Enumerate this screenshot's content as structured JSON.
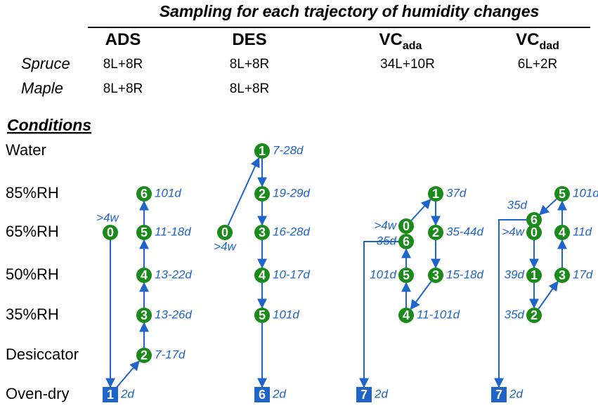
{
  "title": "Sampling for each trajectory of humidity changes",
  "columns": [
    {
      "main": "ADS"
    },
    {
      "main": "DES"
    },
    {
      "main": "VC",
      "sub": "ada"
    },
    {
      "main": "VC",
      "sub": "dad"
    }
  ],
  "rows": [
    {
      "name": "Spruce",
      "values": [
        "8L+8R",
        "8L+8R",
        "34L+10R",
        "6L+2R"
      ]
    },
    {
      "name": "Maple",
      "values": [
        "8L+8R",
        "8L+8R"
      ]
    }
  ],
  "conditions_title": "Conditions",
  "conditions": [
    "Water",
    "85%RH",
    "65%RH",
    "50%RH",
    "35%RH",
    "Desiccator",
    "Oven-dry"
  ],
  "trajectories": [
    {
      "nodes": [
        {
          "id": "0",
          "time": ">4w"
        },
        {
          "id": "1",
          "time": "2d"
        },
        {
          "id": "2",
          "time": "7-17d"
        },
        {
          "id": "3",
          "time": "13-26d"
        },
        {
          "id": "4",
          "time": "13-22d"
        },
        {
          "id": "5",
          "time": "11-18d"
        },
        {
          "id": "6",
          "time": "101d"
        }
      ]
    },
    {
      "nodes": [
        {
          "id": "0",
          "time": ">4w"
        },
        {
          "id": "1",
          "time": "7-28d"
        },
        {
          "id": "2",
          "time": "19-29d"
        },
        {
          "id": "3",
          "time": "16-28d"
        },
        {
          "id": "4",
          "time": "10-17d"
        },
        {
          "id": "5",
          "time": "101d"
        },
        {
          "id": "6",
          "time": "2d"
        }
      ]
    },
    {
      "nodes": [
        {
          "id": "0",
          "time": ">4w"
        },
        {
          "id": "1",
          "time": "37d"
        },
        {
          "id": "2",
          "time": "35-44d"
        },
        {
          "id": "3",
          "time": "15-18d"
        },
        {
          "id": "4",
          "time": "11-101d"
        },
        {
          "id": "5",
          "time": "101d"
        },
        {
          "id": "6",
          "time": "35d"
        },
        {
          "id": "7",
          "time": "2d"
        }
      ]
    },
    {
      "nodes": [
        {
          "id": "0",
          "time": ">4w"
        },
        {
          "id": "1",
          "time": "39d"
        },
        {
          "id": "2",
          "time": "35d"
        },
        {
          "id": "3",
          "time": "17d"
        },
        {
          "id": "4",
          "time": "11d"
        },
        {
          "id": "5",
          "time": "101d"
        },
        {
          "id": "6",
          "time": "35d"
        },
        {
          "id": "7",
          "time": "2d"
        }
      ]
    }
  ]
}
